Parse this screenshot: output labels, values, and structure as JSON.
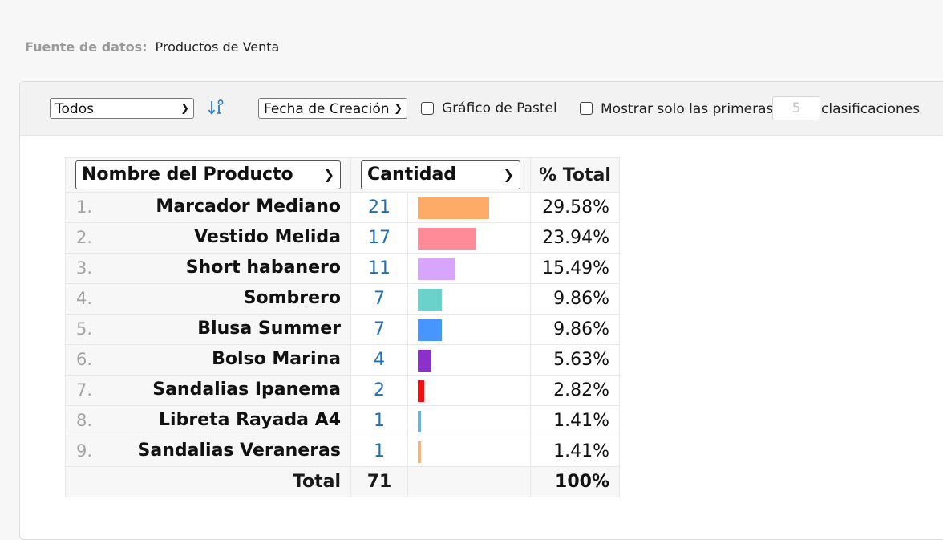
{
  "source": {
    "label": "Fuente de datos:",
    "value": "Productos de Venta"
  },
  "toolbar": {
    "filter_select": "Todos",
    "sort_icon": "sort-ascending-icon",
    "sort_field_select": "Fecha de Creación",
    "pie_chart_label": "Gráfico de Pastel",
    "pie_chart_checked": false,
    "show_only_label_before": "Mostrar solo las primeras",
    "show_only_value": "5",
    "show_only_label_after": "clasificaciones",
    "show_only_checked": false
  },
  "table": {
    "headers": {
      "name": "Nombre del Producto",
      "qty": "Cantidad",
      "pct": "% Total"
    },
    "rows": [
      {
        "rank": "1.",
        "name": "Marcador Mediano",
        "qty": "21",
        "pct": "29.58%",
        "color": "#fdab66"
      },
      {
        "rank": "2.",
        "name": "Vestido Melida",
        "qty": "17",
        "pct": "23.94%",
        "color": "#fe8b97"
      },
      {
        "rank": "3.",
        "name": "Short habanero",
        "qty": "11",
        "pct": "15.49%",
        "color": "#d8a5fd"
      },
      {
        "rank": "4.",
        "name": "Sombrero",
        "qty": "7",
        "pct": "9.86%",
        "color": "#6ad1cb"
      },
      {
        "rank": "5.",
        "name": "Blusa Summer",
        "qty": "7",
        "pct": "9.86%",
        "color": "#4796fd"
      },
      {
        "rank": "6.",
        "name": "Bolso Marina",
        "qty": "4",
        "pct": "5.63%",
        "color": "#8b30c9"
      },
      {
        "rank": "7.",
        "name": "Sandalias Ipanema",
        "qty": "2",
        "pct": "2.82%",
        "color": "#f30f0f"
      },
      {
        "rank": "8.",
        "name": "Libreta Rayada A4",
        "qty": "1",
        "pct": "1.41%",
        "color": "#6fb2dc"
      },
      {
        "rank": "9.",
        "name": "Sandalias Veraneras",
        "qty": "1",
        "pct": "1.41%",
        "color": "#f8b57c"
      }
    ],
    "total": {
      "label": "Total",
      "qty": "71",
      "pct": "100%"
    }
  }
}
